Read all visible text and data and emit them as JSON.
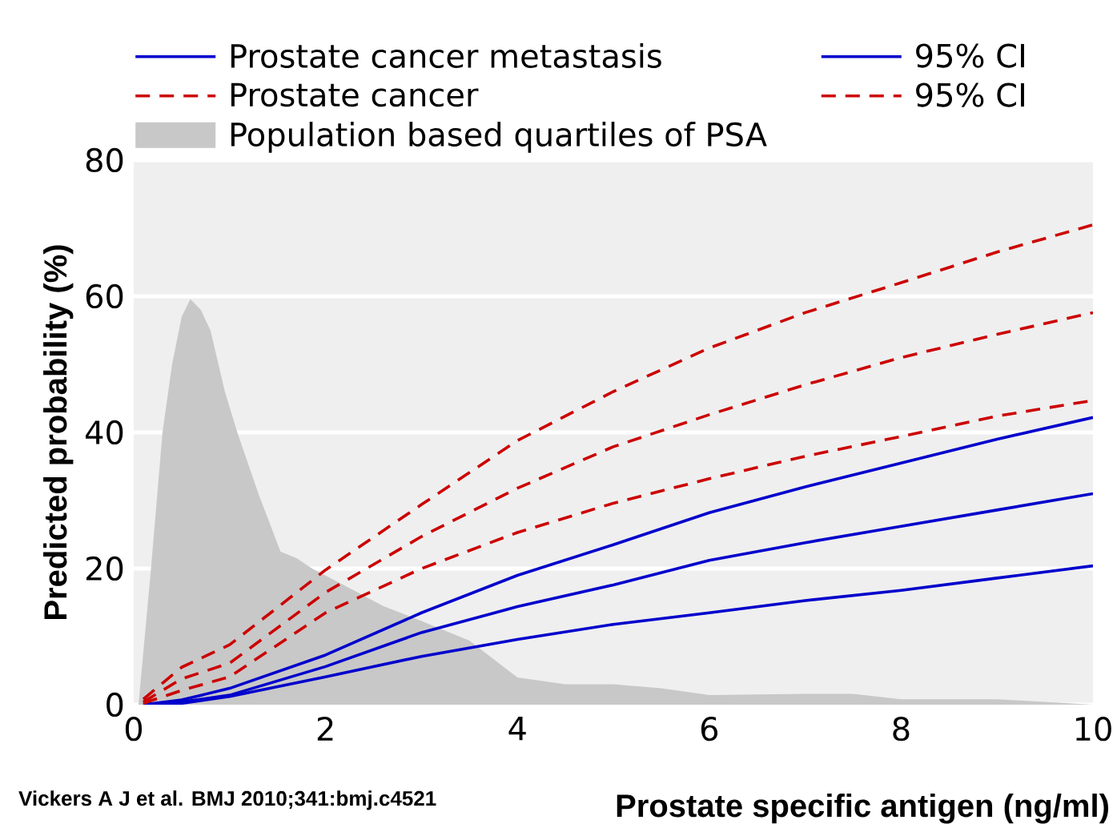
{
  "chart_data": {
    "type": "line",
    "xlabel": "Prostate specific antigen (ng/ml)",
    "ylabel": "Predicted probability (%)",
    "annotations": [
      "Vickers A J et al. BMJ 2010;341:bmj.c4521"
    ],
    "x": [
      0.1,
      0.5,
      1,
      2,
      3,
      4,
      5,
      6,
      7,
      8,
      9,
      10
    ],
    "xlim": [
      0,
      10
    ],
    "ylim": [
      0,
      80
    ],
    "xticks": [
      0,
      2,
      4,
      6,
      8,
      10
    ],
    "yticks": [
      0,
      20,
      40,
      60,
      80
    ],
    "grid": "y",
    "legend": "top",
    "series": [
      {
        "name": "Prostate cancer metastasis",
        "color": "#0000cc",
        "line_style": "solid",
        "values": [
          0,
          0.4,
          1.4,
          5.6,
          10.6,
          14.4,
          17.6,
          21.2,
          23.8,
          26.2,
          28.6,
          31
        ]
      },
      {
        "name": "95% CI",
        "color": "#0000cc",
        "line_style": "solid",
        "values": [
          0,
          0.7,
          2.4,
          7.3,
          13.5,
          19,
          23.5,
          28.2,
          32,
          35.5,
          39,
          42.2
        ]
      },
      {
        "name": "Prostate cancer",
        "color": "#cc0000",
        "line_style": "dashed",
        "values": [
          0.4,
          3.8,
          6.1,
          16.5,
          24.7,
          31.8,
          37.9,
          42.6,
          47,
          51,
          54.4,
          57.6
        ]
      },
      {
        "name": "95% CI",
        "color": "#cc0000",
        "line_style": "dashed",
        "values": [
          0.8,
          5.5,
          8.8,
          19.8,
          29.4,
          38.8,
          46,
          52.4,
          57.6,
          62,
          66.5,
          70.5
        ]
      },
      {
        "name": "Population based quartiles of PSA",
        "type": "area",
        "color": "#c8c8c8",
        "x": [
          0,
          0.05,
          0.18,
          0.3,
          0.4,
          0.5,
          0.59,
          0.7,
          0.8,
          0.95,
          1.08,
          1.3,
          1.53,
          1.7,
          1.86,
          2.2,
          2.6,
          3,
          3.5,
          4,
          4.5,
          5,
          5.5,
          6,
          7,
          7.5,
          8,
          9,
          10
        ],
        "values": [
          0,
          0,
          20,
          40,
          50,
          57,
          59.6,
          58,
          55,
          46,
          40,
          31,
          22.5,
          21.5,
          20,
          17.5,
          14.5,
          12.3,
          9.4,
          4,
          3,
          3,
          2.4,
          1.4,
          1.6,
          1.6,
          0.8,
          0.8,
          0
        ]
      },
      {
        "color": "#0000cc",
        "line_style": "solid",
        "values": [
          0,
          0.2,
          1.2,
          4.1,
          7.1,
          9.6,
          11.8,
          13.5,
          15.3,
          16.8,
          18.6,
          20.4
        ]
      },
      {
        "color": "#cc0000",
        "line_style": "dashed",
        "values": [
          0.2,
          2.1,
          4.1,
          13.5,
          20,
          25.3,
          29.6,
          33.2,
          36.5,
          39.4,
          42.4,
          44.7
        ]
      }
    ]
  }
}
